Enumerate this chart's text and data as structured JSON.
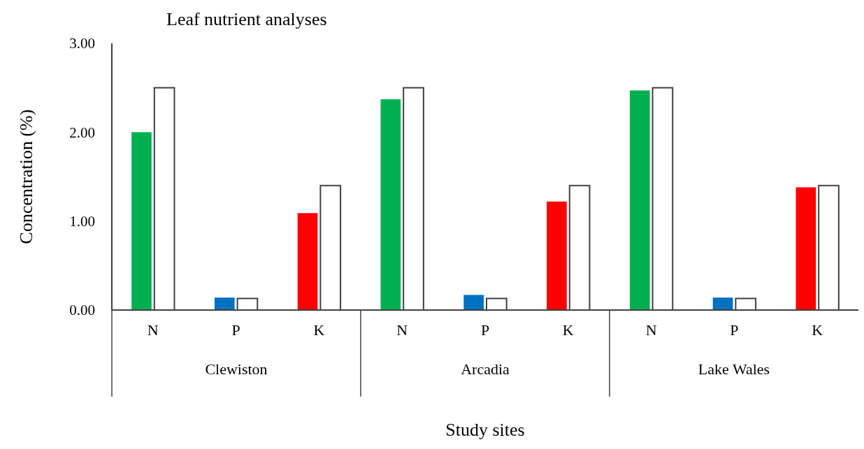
{
  "chart_data": {
    "type": "bar",
    "title": "Leaf nutrient analyses",
    "xlabel": "Study sites",
    "ylabel": "Concentration (%)",
    "categories": [
      "N",
      "P",
      "K",
      "N",
      "P",
      "K",
      "N",
      "P",
      "K"
    ],
    "series": [
      {
        "colors": [
          "#00b050",
          "#0070c0",
          "#ff0000",
          "#00b050",
          "#0070c0",
          "#ff0000",
          "#00b050",
          "#0070c0",
          "#ff0000"
        ],
        "values": [
          2.0,
          0.14,
          1.09,
          2.37,
          0.17,
          1.22,
          2.47,
          0.14,
          1.38
        ]
      },
      {
        "color": "#ffffff",
        "values": [
          2.5,
          0.13,
          1.4,
          2.5,
          0.13,
          1.4,
          2.5,
          0.13,
          1.4
        ]
      }
    ],
    "annotations": [
      "Clewiston",
      "Arcadia",
      "Lake Wales"
    ],
    "ylim": [
      0,
      3
    ],
    "yticks": [
      {
        "value": 0,
        "label": "0.00"
      },
      {
        "value": 1,
        "label": "1.00"
      },
      {
        "value": 2,
        "label": "2.00"
      },
      {
        "value": 3,
        "label": "3.00"
      }
    ],
    "grid": false
  }
}
